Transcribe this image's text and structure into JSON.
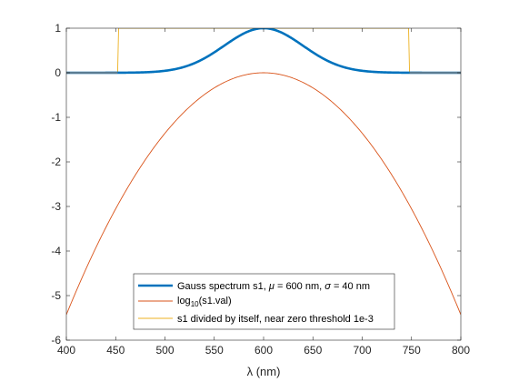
{
  "colors": {
    "background": "#ffffff",
    "axis": "#262626",
    "gauss": "#0072BD",
    "log": "#D95319",
    "ratio": "#EDB120",
    "gray_overlay": "#808080"
  },
  "chart_data": {
    "type": "line",
    "title": "",
    "xlabel": "λ (nm)",
    "ylabel": "",
    "xlim": [
      400,
      800
    ],
    "ylim": [
      -6,
      1
    ],
    "xticks": [
      400,
      450,
      500,
      550,
      600,
      650,
      700,
      750,
      800
    ],
    "yticks": [
      -6,
      -5,
      -4,
      -3,
      -2,
      -1,
      0,
      1
    ],
    "grid": false,
    "legend_position": "bottom-center",
    "x": [
      400,
      425,
      450,
      475,
      500,
      525,
      550,
      575,
      600,
      625,
      650,
      675,
      700,
      725,
      750,
      775,
      800
    ],
    "series": [
      {
        "name": "Gauss spectrum s1, μ = 600 nm, σ = 40 nm",
        "color": "#0072BD",
        "values": [
          3.7e-06,
          7.3e-05,
          0.00088,
          0.006,
          0.044,
          0.17,
          0.46,
          0.82,
          1.0,
          0.82,
          0.46,
          0.17,
          0.044,
          0.006,
          0.00088,
          7.3e-05,
          3.7e-06
        ]
      },
      {
        "name": "log10(s1.val)",
        "color": "#D95319",
        "values": [
          -5.43,
          -4.14,
          -3.05,
          -2.21,
          -1.36,
          -0.77,
          -0.34,
          -0.085,
          0,
          -0.085,
          -0.34,
          -0.77,
          -1.36,
          -2.21,
          -3.05,
          -4.14,
          -5.43
        ]
      },
      {
        "name": "s1 divided by itself, near zero threshold 1e-3",
        "color": "#EDB120",
        "points": [
          [
            400,
            0
          ],
          [
            452,
            0
          ],
          [
            453,
            1
          ],
          [
            747,
            1
          ],
          [
            748,
            0
          ],
          [
            800,
            0
          ]
        ]
      }
    ],
    "legend": [
      {
        "pre": "Gauss spectrum s1, ",
        "mu": "μ",
        "mid": " = 600 nm, ",
        "sigma": "σ",
        "post": " = 40 nm"
      },
      {
        "base": "log",
        "sub": "10",
        "post": "(s1.val)"
      },
      {
        "text": "s1 divided by itself, near zero threshold 1e-3"
      }
    ]
  }
}
